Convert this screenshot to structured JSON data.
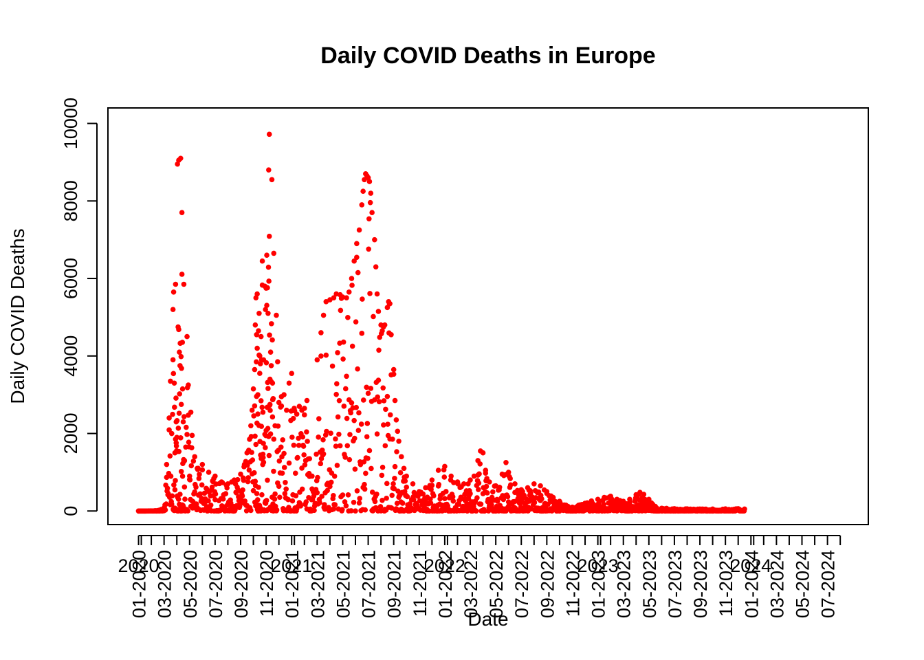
{
  "chart_data": {
    "type": "scatter",
    "title": "Daily COVID Deaths in Europe",
    "xlabel": "Date",
    "ylabel": "Daily COVID Deaths",
    "ylim": [
      -350,
      10400
    ],
    "xlim_months": [
      -2.4,
      57.2
    ],
    "y_ticks": [
      0,
      2000,
      4000,
      6000,
      8000,
      10000
    ],
    "y_tick_labels": [
      "0",
      "2000",
      "4000",
      "6000",
      "8000",
      "10000"
    ],
    "year_labels": [
      "2020",
      "2021",
      "2022",
      "2023",
      "2024"
    ],
    "month_tick_labels": [
      "01-2020",
      "03-2020",
      "05-2020",
      "07-2020",
      "09-2020",
      "11-2020",
      "01-2021",
      "03-2021",
      "05-2021",
      "07-2021",
      "09-2021",
      "11-2021",
      "01-2022",
      "03-2022",
      "05-2022",
      "07-2022",
      "09-2022",
      "11-2022",
      "01-2023",
      "03-2023",
      "05-2023",
      "07-2023",
      "09-2023",
      "11-2023",
      "01-2024",
      "03-2024",
      "05-2024",
      "07-2024"
    ],
    "point_color": "#ff0000",
    "x_unit": "months since Jan 2020",
    "series": [
      {
        "name": "Daily COVID Deaths",
        "points": [
          [
            0.0,
            0
          ],
          [
            0.5,
            0
          ],
          [
            1.0,
            2
          ],
          [
            1.5,
            10
          ],
          [
            2.0,
            80
          ],
          [
            2.2,
            1200
          ],
          [
            2.4,
            2400
          ],
          [
            2.5,
            3350
          ],
          [
            2.6,
            2000
          ],
          [
            2.7,
            5200
          ],
          [
            2.75,
            5650
          ],
          [
            2.8,
            3300
          ],
          [
            2.85,
            1500
          ],
          [
            2.9,
            5850
          ],
          [
            2.95,
            2300
          ],
          [
            3.0,
            1900
          ],
          [
            3.05,
            8950
          ],
          [
            3.1,
            4750
          ],
          [
            3.15,
            9050
          ],
          [
            3.2,
            4100
          ],
          [
            3.25,
            3750
          ],
          [
            3.3,
            9100
          ],
          [
            3.35,
            2750
          ],
          [
            3.4,
            7700
          ],
          [
            3.45,
            3150
          ],
          [
            3.5,
            2300
          ],
          [
            3.55,
            5850
          ],
          [
            3.6,
            1300
          ],
          [
            3.7,
            1650
          ],
          [
            3.8,
            4500
          ],
          [
            3.9,
            3250
          ],
          [
            4.0,
            900
          ],
          [
            4.1,
            2550
          ],
          [
            4.2,
            1950
          ],
          [
            4.4,
            1400
          ],
          [
            4.6,
            1100
          ],
          [
            5.0,
            1200
          ],
          [
            5.5,
            1000
          ],
          [
            6.0,
            900
          ],
          [
            6.5,
            750
          ],
          [
            7.0,
            700
          ],
          [
            7.5,
            800
          ],
          [
            8.0,
            950
          ],
          [
            8.3,
            1200
          ],
          [
            8.5,
            1500
          ],
          [
            8.7,
            1850
          ],
          [
            8.8,
            2200
          ],
          [
            8.9,
            2600
          ],
          [
            9.0,
            3150
          ],
          [
            9.1,
            3650
          ],
          [
            9.15,
            4800
          ],
          [
            9.2,
            5500
          ],
          [
            9.25,
            4550
          ],
          [
            9.3,
            5600
          ],
          [
            9.35,
            3000
          ],
          [
            9.4,
            4650
          ],
          [
            9.45,
            5100
          ],
          [
            9.5,
            4000
          ],
          [
            9.55,
            3800
          ],
          [
            9.6,
            4500
          ],
          [
            9.65,
            3900
          ],
          [
            9.7,
            6450
          ],
          [
            9.75,
            2550
          ],
          [
            9.8,
            3900
          ],
          [
            9.9,
            5800
          ],
          [
            9.95,
            5200
          ],
          [
            10.0,
            5750
          ],
          [
            10.05,
            6600
          ],
          [
            10.1,
            5760
          ],
          [
            10.15,
            5100
          ],
          [
            10.2,
            8800
          ],
          [
            10.25,
            9720
          ],
          [
            10.3,
            3400
          ],
          [
            10.35,
            4100
          ],
          [
            10.4,
            3750
          ],
          [
            10.45,
            8550
          ],
          [
            10.5,
            3300
          ],
          [
            10.55,
            2900
          ],
          [
            10.6,
            6650
          ],
          [
            10.7,
            2200
          ],
          [
            10.8,
            5050
          ],
          [
            10.9,
            3850
          ],
          [
            11.0,
            2800
          ],
          [
            11.2,
            2950
          ],
          [
            11.4,
            3000
          ],
          [
            11.6,
            2600
          ],
          [
            11.8,
            3300
          ],
          [
            12.0,
            3550
          ],
          [
            12.2,
            2650
          ],
          [
            12.4,
            2500
          ],
          [
            12.6,
            2700
          ],
          [
            12.8,
            2600
          ],
          [
            13.0,
            2650
          ],
          [
            13.2,
            2850
          ],
          [
            13.4,
            1350
          ],
          [
            13.6,
            900
          ],
          [
            13.8,
            450
          ],
          [
            14.0,
            3900
          ],
          [
            14.3,
            4600
          ],
          [
            14.5,
            5050
          ],
          [
            14.7,
            5400
          ],
          [
            15.0,
            5450
          ],
          [
            15.3,
            5500
          ],
          [
            15.5,
            5600
          ],
          [
            15.8,
            5580
          ],
          [
            16.0,
            5520
          ],
          [
            16.3,
            5500
          ],
          [
            16.5,
            5650
          ],
          [
            16.7,
            6000
          ],
          [
            16.9,
            6450
          ],
          [
            17.1,
            6900
          ],
          [
            17.3,
            7250
          ],
          [
            17.5,
            7900
          ],
          [
            17.6,
            8250
          ],
          [
            17.7,
            8550
          ],
          [
            17.8,
            8700
          ],
          [
            17.9,
            8650
          ],
          [
            18.0,
            8600
          ],
          [
            18.1,
            8500
          ],
          [
            18.2,
            8200
          ],
          [
            18.3,
            7700
          ],
          [
            18.5,
            7000
          ],
          [
            18.6,
            6300
          ],
          [
            18.7,
            5600
          ],
          [
            18.8,
            5150
          ],
          [
            19.0,
            4800
          ],
          [
            19.1,
            4650
          ],
          [
            19.2,
            4750
          ],
          [
            19.3,
            4800
          ],
          [
            19.5,
            5250
          ],
          [
            19.6,
            5400
          ],
          [
            19.7,
            5350
          ],
          [
            19.8,
            4550
          ],
          [
            20.0,
            3650
          ],
          [
            20.1,
            2850
          ],
          [
            20.2,
            2350
          ],
          [
            20.4,
            1800
          ],
          [
            20.6,
            1400
          ],
          [
            20.8,
            1100
          ],
          [
            21.0,
            900
          ],
          [
            21.5,
            700
          ],
          [
            22.0,
            500
          ],
          [
            22.5,
            600
          ],
          [
            23.0,
            800
          ],
          [
            23.5,
            1050
          ],
          [
            24.0,
            1150
          ],
          [
            24.5,
            900
          ],
          [
            25.0,
            750
          ],
          [
            25.5,
            700
          ],
          [
            26.0,
            800
          ],
          [
            26.3,
            900
          ],
          [
            26.6,
            1300
          ],
          [
            26.8,
            1550
          ],
          [
            27.0,
            1500
          ],
          [
            27.2,
            1050
          ],
          [
            27.5,
            750
          ],
          [
            28.0,
            650
          ],
          [
            28.5,
            950
          ],
          [
            28.8,
            1250
          ],
          [
            29.0,
            1000
          ],
          [
            29.5,
            700
          ],
          [
            30.0,
            550
          ],
          [
            30.5,
            600
          ],
          [
            31.0,
            700
          ],
          [
            31.5,
            650
          ],
          [
            32.0,
            500
          ],
          [
            32.5,
            350
          ],
          [
            33.0,
            250
          ],
          [
            33.5,
            150
          ],
          [
            34.0,
            100
          ],
          [
            34.5,
            150
          ],
          [
            35.0,
            200
          ],
          [
            35.5,
            260
          ],
          [
            36.0,
            300
          ],
          [
            36.5,
            350
          ],
          [
            37.0,
            380
          ],
          [
            37.5,
            300
          ],
          [
            38.0,
            250
          ],
          [
            38.5,
            300
          ],
          [
            39.0,
            420
          ],
          [
            39.3,
            480
          ],
          [
            39.6,
            430
          ],
          [
            40.0,
            300
          ],
          [
            40.5,
            120
          ],
          [
            41.0,
            70
          ],
          [
            42.0,
            60
          ],
          [
            43.0,
            55
          ],
          [
            44.0,
            50
          ],
          [
            45.0,
            50
          ],
          [
            46.0,
            55
          ],
          [
            47.0,
            60
          ],
          [
            47.5,
            50
          ]
        ]
      }
    ]
  }
}
